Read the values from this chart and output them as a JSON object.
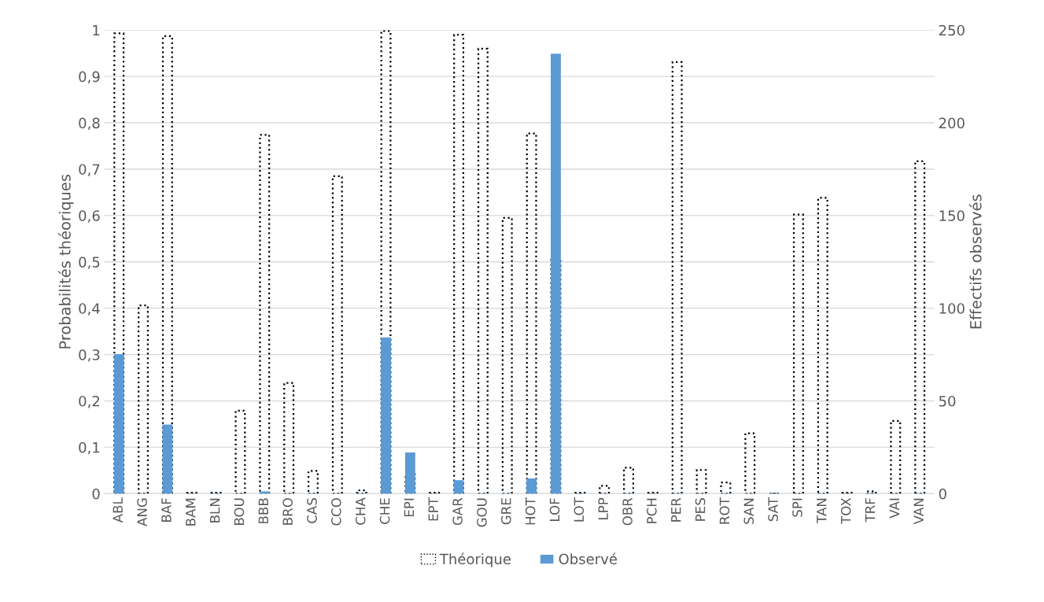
{
  "chart_data": {
    "type": "bar",
    "ylabel": "Probabilités théoriques",
    "y2label": "Effectifs observés",
    "categories": [
      "ABL",
      "ANG",
      "BAF",
      "BAM",
      "BLN",
      "BOU",
      "BBB",
      "BRO",
      "CAS",
      "CCO",
      "CHA",
      "CHE",
      "EPI",
      "EPT",
      "GAR",
      "GOU",
      "GRE",
      "HOT",
      "LOF",
      "LOT",
      "LPP",
      "OBR",
      "PCH",
      "PER",
      "PES",
      "ROT",
      "SAN",
      "SAT",
      "SPI",
      "TAN",
      "TOX",
      "TRF",
      "VAI",
      "VAN"
    ],
    "series": [
      {
        "name": "Théorique",
        "color": "#000000",
        "line_style": "dotted",
        "values": [
          0.993,
          0.406,
          0.987,
          0.002,
          0.002,
          0.179,
          0.774,
          0.239,
          0.049,
          0.685,
          0.007,
          0.998,
          0.044,
          0.002,
          0.99,
          0.96,
          0.595,
          0.777,
          0.508,
          0.002,
          0.017,
          0.056,
          0.002,
          0.931,
          0.051,
          0.024,
          0.13,
          0,
          0.602,
          0.638,
          0.002,
          0.005,
          0.157,
          0.717
        ]
      },
      {
        "name": "Observé",
        "color": "#5b9bd5",
        "axis": "y2",
        "values": [
          75,
          0,
          37,
          0,
          0,
          0,
          1,
          0,
          0,
          0,
          0,
          84,
          22,
          0,
          7,
          0,
          0,
          8,
          237,
          0,
          0,
          0,
          0,
          0,
          0,
          0,
          0,
          0,
          0,
          0,
          0,
          0,
          0,
          0
        ]
      }
    ],
    "ylim": [
      0,
      1
    ],
    "yticks": [
      0,
      {
        "value": 0.1,
        "label": "0,1"
      },
      {
        "value": 0.2,
        "label": "0,2"
      },
      {
        "value": 0.3,
        "label": "0,3"
      },
      {
        "value": 0.4,
        "label": "0,4"
      },
      {
        "value": 0.5,
        "label": "0,5"
      },
      {
        "value": 0.6,
        "label": "0,6"
      },
      {
        "value": 0.7,
        "label": "0,7"
      },
      {
        "value": 0.8,
        "label": "0,8"
      },
      {
        "value": 0.9,
        "label": "0,9"
      },
      1
    ],
    "y2lim": [
      0,
      250
    ],
    "y2ticks": [
      0,
      50,
      100,
      150,
      200,
      250
    ],
    "grid": "y",
    "legend": "bottom"
  }
}
